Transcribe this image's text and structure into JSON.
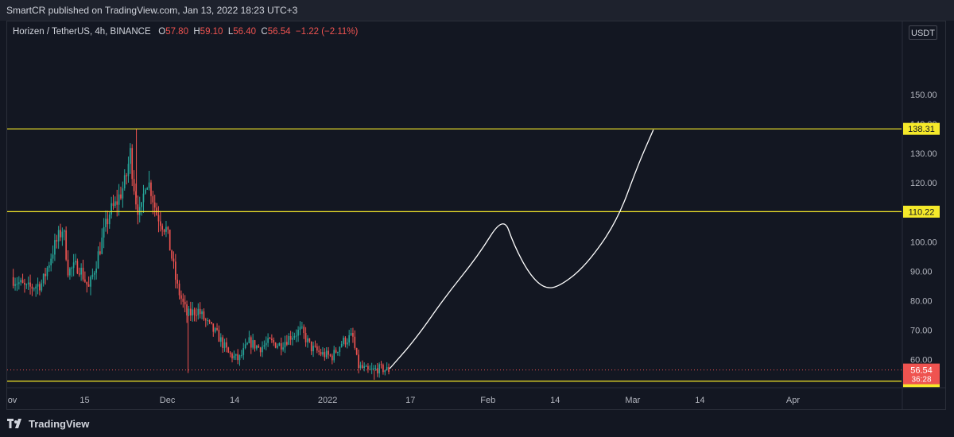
{
  "publish_line": "SmartCR published on TradingView.com, Jan 13, 2022 18:23 UTC+3",
  "legend": {
    "title": "Horizen / TetherUS, 4h, BINANCE",
    "o_label": "O",
    "o_value": "57.80",
    "h_label": "H",
    "h_value": "59.10",
    "l_label": "L",
    "l_value": "56.40",
    "c_label": "C",
    "c_value": "56.54",
    "change": "−1.22 (−2.11%)"
  },
  "currency": "USDT",
  "brand": "TradingView",
  "colors": {
    "background": "#131722",
    "up": "#26a69a",
    "down": "#ef5350",
    "level": "#f5e92a",
    "drawing": "#ffffff"
  },
  "chart_data": {
    "type": "line",
    "symbol": "Horizen / TetherUS",
    "timeframe": "4h",
    "exchange": "BINANCE",
    "y_ticks": [
      "150.00",
      "140.00",
      "130.00",
      "120.00",
      "110.00",
      "100.00",
      "90.00",
      "80.00",
      "70.00",
      "60.00"
    ],
    "y_tick_values": [
      150,
      140,
      130,
      120,
      110,
      100,
      90,
      80,
      70,
      60
    ],
    "ylim": [
      50.5,
      168
    ],
    "x_ticks": [
      "ov",
      "15",
      "Dec",
      "14",
      "2022",
      "17",
      "Feb",
      "14",
      "Mar",
      "14",
      "Apr"
    ],
    "x_tick_dates": [
      "2021-11-01",
      "2021-11-15",
      "2021-12-01",
      "2021-12-14",
      "2022-01-01",
      "2022-01-17",
      "2022-02-01",
      "2022-02-14",
      "2022-03-01",
      "2022-03-14",
      "2022-04-01"
    ],
    "xlim": [
      "2021-10-31",
      "2022-04-22"
    ],
    "horizontal_levels": [
      {
        "value": 138.31,
        "label": "138.31"
      },
      {
        "value": 110.22,
        "label": "110.22"
      },
      {
        "value": 52.73,
        "label": "52.73"
      }
    ],
    "last_price": {
      "value": 56.54,
      "label": "56.54",
      "countdown": "36:28"
    },
    "price_path": {
      "x": [
        "2021-11-01",
        "2021-11-04",
        "2021-11-07",
        "2021-11-09",
        "2021-11-11",
        "2021-11-12",
        "2021-11-14",
        "2021-11-16",
        "2021-11-18",
        "2021-11-20",
        "2021-11-21",
        "2021-11-23",
        "2021-11-24",
        "2021-11-25",
        "2021-11-26",
        "2021-11-27",
        "2021-11-28",
        "2021-11-29",
        "2021-12-01",
        "2021-12-02",
        "2021-12-03",
        "2021-12-04",
        "2021-12-05",
        "2021-12-07",
        "2021-12-09",
        "2021-12-11",
        "2021-12-13",
        "2021-12-15",
        "2021-12-17",
        "2021-12-19",
        "2021-12-21",
        "2021-12-23",
        "2021-12-25",
        "2021-12-27",
        "2021-12-29",
        "2021-12-31",
        "2022-01-02",
        "2022-01-04",
        "2022-01-06",
        "2022-01-07",
        "2022-01-09",
        "2022-01-11",
        "2022-01-13"
      ],
      "y": [
        88,
        84,
        86,
        97,
        105,
        90,
        92,
        84,
        97,
        110,
        112,
        120,
        130,
        115,
        108,
        122,
        118,
        110,
        104,
        95,
        85,
        80,
        75,
        77,
        72,
        68,
        62,
        60,
        66,
        64,
        66,
        65,
        68,
        70,
        64,
        62,
        61,
        66,
        68,
        58,
        56,
        57,
        56.5
      ]
    },
    "projection": {
      "x": [
        "2022-01-13",
        "2022-01-18",
        "2022-01-24",
        "2022-01-30",
        "2022-02-04",
        "2022-02-06",
        "2022-02-09",
        "2022-02-12",
        "2022-02-15",
        "2022-02-20",
        "2022-02-26",
        "2022-03-02",
        "2022-03-05"
      ],
      "y": [
        57,
        67,
        82,
        95,
        109,
        99,
        89,
        84,
        85,
        92,
        107,
        126,
        138
      ]
    },
    "candles": {
      "count": 200,
      "up_color": "#26a69a",
      "down_color": "#ef5350"
    }
  }
}
